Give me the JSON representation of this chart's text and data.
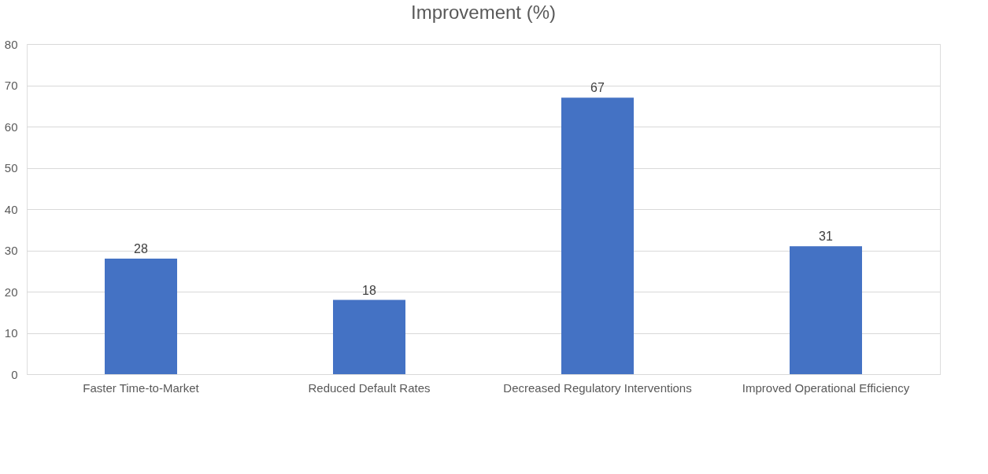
{
  "chart_data": {
    "type": "bar",
    "title": "Improvement (%)",
    "categories": [
      "Faster Time-to-Market",
      "Reduced Default Rates",
      "Decreased Regulatory Interventions",
      "Improved Operational Efficiency"
    ],
    "values": [
      28,
      18,
      67,
      31
    ],
    "color": "#4472c4",
    "ylim": [
      0,
      80
    ],
    "yticks": [
      0,
      10,
      20,
      30,
      40,
      50,
      60,
      70,
      80
    ],
    "grid": "y",
    "data_labels": true
  }
}
